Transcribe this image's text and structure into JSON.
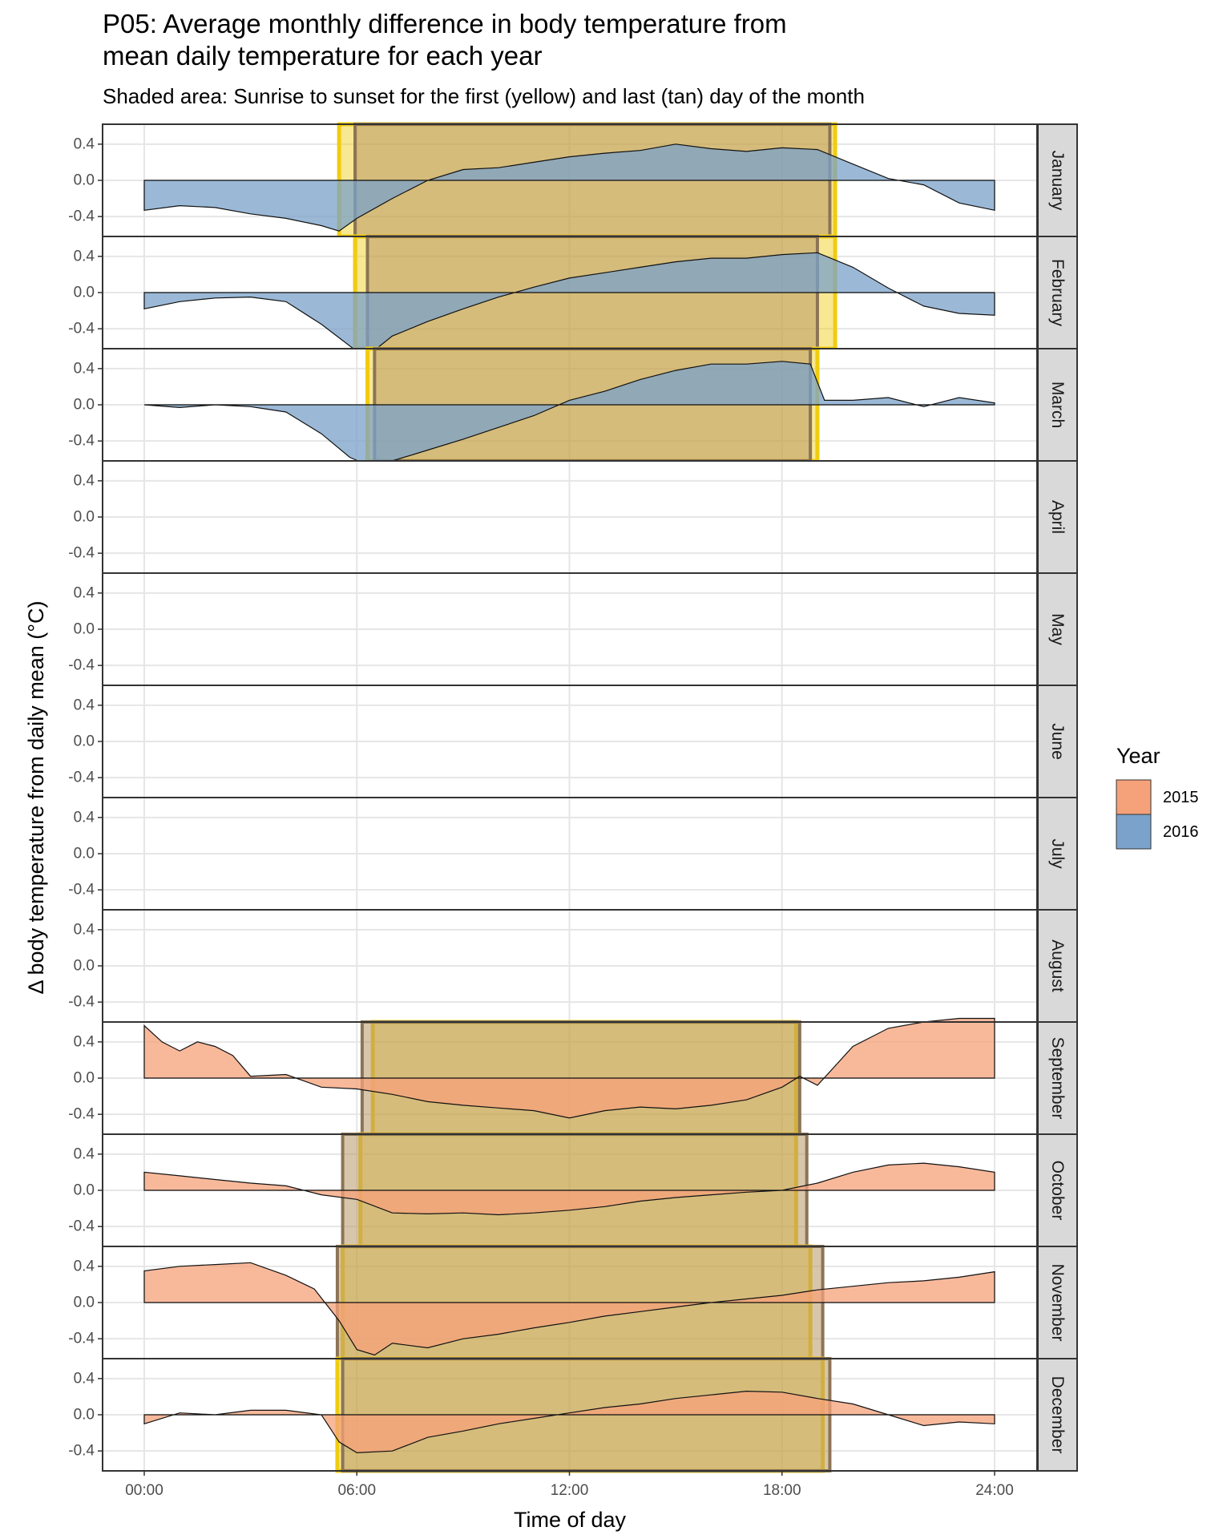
{
  "title_lines": [
    "P05: Average monthly difference in body temperature from",
    "mean daily temperature for each year"
  ],
  "subtitle": "Shaded area: Sunrise to sunset for the first (yellow) and last (tan) day of the month",
  "colors": {
    "2015": "#F5A17A",
    "2016": "#7AA2CA",
    "sun_first": "#F0CC10",
    "sun_last": "#B89868",
    "grid": "#E6E6E6",
    "strip_bg": "#D9D9D9",
    "panel_border": "#333333"
  },
  "chart_data": {
    "type": "area",
    "title": "P05: Average monthly difference in body temperature from mean daily temperature for each year",
    "subtitle": "Shaded area: Sunrise to sunset for the first (yellow) and last (tan) day of the month",
    "xlabel": "Time of day",
    "ylabel": "Δ body temperature from daily mean (°C)",
    "x_ticks": [
      "00:00",
      "06:00",
      "12:00",
      "18:00",
      "24:00"
    ],
    "xlim": [
      0,
      24
    ],
    "y_ticks": [
      "0.4",
      "0.0",
      "-0.4"
    ],
    "ylim": [
      -0.62,
      0.62
    ],
    "grid": true,
    "legend": {
      "title": "Year",
      "position": "right",
      "entries": [
        "2015",
        "2016"
      ]
    },
    "panels": [
      {
        "month": "January",
        "year": "2016",
        "sun_first": [
          5.5,
          19.5
        ],
        "sun_last": [
          5.95,
          19.35
        ],
        "x": [
          0,
          1,
          2,
          3,
          4,
          5,
          5.5,
          6,
          7,
          8,
          9,
          10,
          11,
          12,
          13,
          14,
          15,
          16,
          17,
          18,
          19,
          20,
          21,
          22,
          23,
          24
        ],
        "y": [
          -0.33,
          -0.28,
          -0.3,
          -0.37,
          -0.42,
          -0.5,
          -0.56,
          -0.42,
          -0.2,
          0.0,
          0.12,
          0.14,
          0.2,
          0.26,
          0.3,
          0.33,
          0.4,
          0.35,
          0.32,
          0.36,
          0.34,
          0.18,
          0.02,
          -0.05,
          -0.25,
          -0.33
        ]
      },
      {
        "month": "February",
        "year": "2016",
        "sun_first": [
          5.95,
          19.5
        ],
        "sun_last": [
          6.3,
          19.0
        ],
        "x": [
          0,
          1,
          2,
          3,
          4,
          5,
          6,
          6.3,
          7,
          8,
          9,
          10,
          11,
          12,
          13,
          14,
          15,
          16,
          17,
          18,
          19,
          20,
          21,
          22,
          23,
          24
        ],
        "y": [
          -0.18,
          -0.1,
          -0.06,
          -0.05,
          -0.1,
          -0.35,
          -0.65,
          -0.7,
          -0.48,
          -0.32,
          -0.18,
          -0.05,
          0.06,
          0.16,
          0.22,
          0.28,
          0.34,
          0.38,
          0.38,
          0.42,
          0.44,
          0.28,
          0.05,
          -0.15,
          -0.23,
          -0.25
        ]
      },
      {
        "month": "March",
        "year": "2016",
        "sun_first": [
          6.3,
          19.0
        ],
        "sun_last": [
          6.5,
          18.8
        ],
        "x": [
          0,
          1,
          2,
          3,
          4,
          5,
          5.8,
          6.5,
          7,
          8,
          9,
          10,
          11,
          12,
          13,
          14,
          15,
          16,
          17,
          18,
          18.8,
          19.2,
          20,
          21,
          22,
          23,
          24
        ],
        "y": [
          0.0,
          -0.03,
          0.0,
          -0.02,
          -0.08,
          -0.32,
          -0.58,
          -0.7,
          -0.62,
          -0.5,
          -0.38,
          -0.25,
          -0.12,
          0.05,
          0.15,
          0.28,
          0.38,
          0.45,
          0.45,
          0.48,
          0.45,
          0.05,
          0.05,
          0.08,
          -0.02,
          0.08,
          0.02
        ]
      },
      {
        "month": "April",
        "year": "",
        "sun_first": null,
        "sun_last": null,
        "x": [],
        "y": []
      },
      {
        "month": "May",
        "year": "",
        "sun_first": null,
        "sun_last": null,
        "x": [],
        "y": []
      },
      {
        "month": "June",
        "year": "",
        "sun_first": null,
        "sun_last": null,
        "x": [],
        "y": []
      },
      {
        "month": "July",
        "year": "",
        "sun_first": null,
        "sun_last": null,
        "x": [],
        "y": []
      },
      {
        "month": "August",
        "year": "",
        "sun_first": null,
        "sun_last": null,
        "x": [],
        "y": []
      },
      {
        "month": "September",
        "year": "2015",
        "sun_first": [
          6.45,
          18.4
        ],
        "sun_last": [
          6.15,
          18.5
        ],
        "x": [
          0,
          0.5,
          1,
          1.5,
          2,
          2.5,
          3,
          4,
          5,
          6,
          7,
          8,
          9,
          10,
          11,
          12,
          13,
          14,
          15,
          16,
          17,
          18,
          18.5,
          19,
          20,
          21,
          22,
          23,
          24
        ],
        "y": [
          0.58,
          0.4,
          0.3,
          0.4,
          0.35,
          0.25,
          0.02,
          0.04,
          -0.1,
          -0.12,
          -0.18,
          -0.26,
          -0.3,
          -0.33,
          -0.36,
          -0.44,
          -0.36,
          -0.32,
          -0.34,
          -0.3,
          -0.24,
          -0.1,
          0.02,
          -0.08,
          0.35,
          0.55,
          0.62,
          0.66,
          0.66
        ]
      },
      {
        "month": "October",
        "year": "2015",
        "sun_first": [
          6.1,
          18.4
        ],
        "sun_last": [
          5.6,
          18.7
        ],
        "x": [
          0,
          1,
          2,
          3,
          4,
          5,
          6,
          7,
          8,
          9,
          10,
          11,
          12,
          13,
          14,
          15,
          16,
          17,
          18,
          19,
          20,
          21,
          22,
          23,
          24
        ],
        "y": [
          0.2,
          0.16,
          0.12,
          0.08,
          0.05,
          -0.05,
          -0.1,
          -0.25,
          -0.26,
          -0.25,
          -0.27,
          -0.25,
          -0.22,
          -0.18,
          -0.12,
          -0.08,
          -0.05,
          -0.02,
          0.0,
          0.08,
          0.2,
          0.28,
          0.3,
          0.26,
          0.2
        ]
      },
      {
        "month": "November",
        "year": "2015",
        "sun_first": [
          5.6,
          18.8
        ],
        "sun_last": [
          5.45,
          19.15
        ],
        "x": [
          0,
          1,
          2,
          3,
          4,
          4.8,
          5.5,
          6,
          6.5,
          7,
          8,
          9,
          10,
          11,
          12,
          13,
          14,
          15,
          16,
          17,
          18,
          19,
          20,
          21,
          22,
          23,
          24
        ],
        "y": [
          0.35,
          0.4,
          0.42,
          0.44,
          0.3,
          0.15,
          -0.2,
          -0.52,
          -0.58,
          -0.45,
          -0.5,
          -0.4,
          -0.35,
          -0.28,
          -0.22,
          -0.15,
          -0.1,
          -0.05,
          0.0,
          0.04,
          0.08,
          0.14,
          0.18,
          0.22,
          0.24,
          0.28,
          0.34
        ]
      },
      {
        "month": "December",
        "year": "2015",
        "sun_first": [
          5.45,
          19.15
        ],
        "sun_last": [
          5.6,
          19.35
        ],
        "x": [
          0,
          1,
          2,
          3,
          4,
          5,
          5.5,
          6,
          7,
          8,
          9,
          10,
          11,
          12,
          13,
          14,
          15,
          16,
          17,
          18,
          19,
          20,
          21,
          22,
          23,
          24
        ],
        "y": [
          -0.1,
          0.02,
          0.0,
          0.05,
          0.05,
          0.0,
          -0.3,
          -0.42,
          -0.4,
          -0.25,
          -0.18,
          -0.1,
          -0.04,
          0.02,
          0.08,
          0.12,
          0.18,
          0.22,
          0.26,
          0.25,
          0.18,
          0.12,
          0.0,
          -0.12,
          -0.08,
          -0.1
        ]
      }
    ]
  }
}
